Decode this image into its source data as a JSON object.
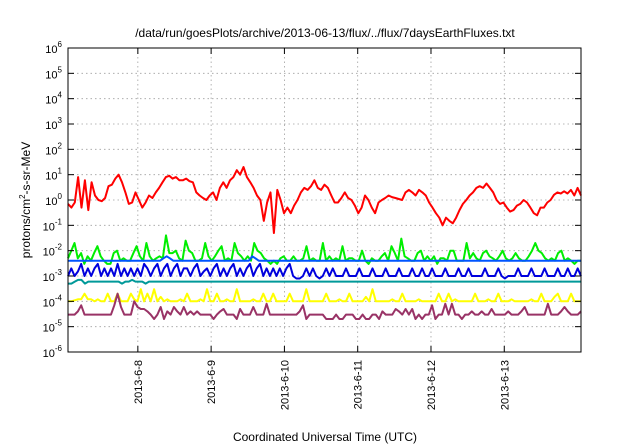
{
  "chart_data": {
    "type": "line",
    "title": "/data/run/goesPlots/archive/2013-06-13/flux/../flux/7daysEarthFluxes.txt",
    "xlabel": "Coordinated Universal Time (UTC)",
    "ylabel": "protons/cm²-s-sr-MeV",
    "ylabel_parts": {
      "main": "protons/cm",
      "sup": "2",
      "rest": "-s-sr-MeV"
    },
    "yscale": "log",
    "ylim": [
      1e-06,
      1000000.0
    ],
    "ytick_base": "10",
    "ytick_exponents": [
      "-6",
      "-5",
      "-4",
      "-3",
      "-2",
      "-1",
      "0",
      "1",
      "2",
      "3",
      "4",
      "5",
      "6"
    ],
    "xlim_days": [
      0,
      7
    ],
    "xticks": [
      "2013-6-8",
      "2013-6-9",
      "2013-6-10",
      "2013-6-11",
      "2013-6-12",
      "2013-6-13"
    ],
    "grid": true,
    "series": [
      {
        "color": "#ff0000",
        "values": [
          0.7,
          0.5,
          0.8,
          8,
          0.5,
          6,
          0.4,
          5,
          1.5,
          1,
          0.9,
          1.2,
          3.5,
          4,
          7,
          10,
          5,
          2,
          0.7,
          0.8,
          2,
          1,
          0.5,
          0.8,
          1.5,
          1.2,
          2,
          3,
          5,
          8,
          9,
          7,
          8,
          6,
          6,
          7,
          5.5,
          5,
          2,
          1.5,
          1.2,
          1,
          1.5,
          2,
          1,
          3,
          5,
          3,
          6,
          8,
          15,
          10,
          20,
          8,
          5,
          3,
          1.5,
          1,
          0.15,
          0.8,
          2,
          0.05,
          2.5,
          1,
          0.3,
          0.5,
          0.3,
          0.6,
          1,
          2,
          3,
          2.5,
          3.5,
          6,
          3,
          2.5,
          4,
          3,
          1.5,
          0.8,
          0.8,
          1.2,
          2,
          1.2,
          1,
          0.6,
          0.3,
          0.5,
          1.5,
          1,
          0.5,
          0.3,
          0.8,
          1,
          1.2,
          1.5,
          1.3,
          1.2,
          1.1,
          1,
          2,
          2.5,
          2,
          1.5,
          2.5,
          2,
          1.5,
          0.8,
          0.5,
          0.3,
          0.2,
          0.1,
          0.2,
          0.15,
          0.12,
          0.2,
          0.4,
          0.7,
          1,
          1.5,
          2,
          3,
          3.5,
          3,
          4.5,
          3,
          2,
          1,
          0.7,
          0.8,
          0.5,
          0.35,
          0.4,
          0.6,
          0.7,
          1,
          0.8,
          0.5,
          0.3,
          0.25,
          0.5,
          0.5,
          0.8,
          1,
          1.6,
          2,
          1.8,
          2.2,
          1.8,
          2.5,
          1.5,
          3,
          1.5
        ]
      },
      {
        "color": "#00ee00",
        "values": [
          0.005,
          0.01,
          0.02,
          0.005,
          0.008,
          0.003,
          0.006,
          0.004,
          0.008,
          0.015,
          0.006,
          0.004,
          0.003,
          0.003,
          0.008,
          0.01,
          0.004,
          0.005,
          0.004,
          0.004,
          0.008,
          0.015,
          0.006,
          0.004,
          0.02,
          0.006,
          0.004,
          0.005,
          0.006,
          0.005,
          0.04,
          0.008,
          0.008,
          0.01,
          0.005,
          0.004,
          0.025,
          0.01,
          0.008,
          0.004,
          0.004,
          0.005,
          0.02,
          0.006,
          0.004,
          0.006,
          0.01,
          0.015,
          0.004,
          0.005,
          0.004,
          0.02,
          0.008,
          0.006,
          0.004,
          0.006,
          0.004,
          0.02,
          0.01,
          0.008,
          0.005,
          0.004,
          0.003,
          0.004,
          0.003,
          0.005,
          0.006,
          0.004,
          0.004,
          0.006,
          0.004,
          0.004,
          0.005,
          0.015,
          0.004,
          0.005,
          0.004,
          0.004,
          0.02,
          0.004,
          0.006,
          0.004,
          0.005,
          0.004,
          0.015,
          0.004,
          0.005,
          0.005,
          0.004,
          0.004,
          0.01,
          0.004,
          0.003,
          0.005,
          0.004,
          0.004,
          0.006,
          0.008,
          0.004,
          0.015,
          0.008,
          0.004,
          0.03,
          0.006,
          0.005,
          0.004,
          0.004,
          0.008,
          0.01,
          0.004,
          0.006,
          0.004,
          0.006,
          0.003,
          0.005,
          0.005,
          0.004,
          0.01,
          0.01,
          0.004,
          0.004,
          0.004,
          0.02,
          0.005,
          0.008,
          0.005,
          0.004,
          0.008,
          0.01,
          0.006,
          0.005,
          0.004,
          0.006,
          0.01,
          0.005,
          0.004,
          0.005,
          0.008,
          0.005,
          0.004,
          0.004,
          0.006,
          0.01,
          0.02,
          0.01,
          0.008,
          0.005,
          0.004,
          0.005,
          0.004,
          0.008,
          0.01,
          0.004,
          0.005,
          0.004,
          0.003,
          0.004,
          0.004
        ]
      },
      {
        "color": "#ffff00",
        "values": [
          0.0001,
          0.0001,
          0.00011,
          0.00012,
          0.00012,
          0.0002,
          0.00012,
          0.00012,
          0.0001,
          0.00012,
          0.0001,
          0.0001,
          0.0002,
          0.0001,
          0.0001,
          0.0002,
          0.0001,
          0.0001,
          0.0001,
          0.0002,
          0.00012,
          0.0001,
          0.0003,
          0.0001,
          0.0002,
          0.0001,
          0.0003,
          0.0001,
          0.00015,
          0.0001,
          0.00012,
          0.0001,
          0.0001,
          0.0001,
          0.00012,
          0.0001,
          0.0002,
          0.0001,
          0.0001,
          0.0001,
          0.00012,
          0.0001,
          0.0003,
          0.0001,
          0.0001,
          0.0002,
          0.0001,
          0.0001,
          0.00012,
          0.0001,
          0.0001,
          0.0003,
          0.0001,
          0.0001,
          0.0001,
          0.0001,
          0.00012,
          0.0001,
          0.0001,
          0.0002,
          0.0001,
          0.0001,
          0.0002,
          0.0001,
          0.0001,
          0.0001,
          0.0001,
          0.0002,
          0.0001,
          0.0001,
          0.0001,
          0.0001,
          0.0003,
          0.0001,
          0.0001,
          0.0001,
          0.0001,
          0.0001,
          0.0002,
          0.0001,
          0.0001,
          0.0001,
          0.00012,
          0.0001,
          0.0001,
          0.0002,
          0.0001,
          0.0001,
          0.0001,
          0.0001,
          0.00015,
          0.0001,
          0.0003,
          0.0001,
          0.0001,
          0.0001,
          0.0001,
          0.0001,
          0.00012,
          0.0001,
          0.0001,
          0.0002,
          0.0001,
          0.0001,
          0.0001,
          0.0001,
          0.00012,
          0.0001,
          0.0001,
          0.0001,
          0.0001,
          0.0001,
          0.0002,
          0.0001,
          0.0001,
          0.0002,
          0.0001,
          0.00012,
          0.0001,
          0.0001,
          0.0001,
          0.0001,
          0.0001,
          0.0002,
          0.0001,
          0.0001,
          0.0001,
          0.00012,
          0.0001,
          0.0001,
          0.0002,
          0.0001,
          0.0001,
          0.0001,
          0.00012,
          0.0001,
          0.0001,
          0.0001,
          0.0001,
          0.0001,
          0.00012,
          0.0001,
          0.0001,
          0.0002,
          0.0001,
          0.0001,
          0.0001,
          0.00015,
          0.0002,
          0.0001,
          0.0001,
          0.0001,
          0.0002,
          0.0001,
          0.0001,
          0.0001
        ]
      },
      {
        "color": "#993366",
        "values": [
          3e-05,
          3e-05,
          3e-05,
          4e-05,
          7e-05,
          3e-05,
          3e-05,
          3e-05,
          3e-05,
          3e-05,
          3e-05,
          3e-05,
          3e-05,
          3e-05,
          7e-05,
          0.0002,
          6e-05,
          3e-05,
          3e-05,
          3e-05,
          0.0001,
          6e-05,
          5e-05,
          5e-05,
          4e-05,
          3e-05,
          2e-05,
          3e-05,
          6e-05,
          2e-05,
          4e-05,
          3e-05,
          6e-05,
          4e-05,
          3e-05,
          6e-05,
          3e-05,
          4e-05,
          3e-05,
          4e-05,
          3e-05,
          3e-05,
          3e-05,
          3e-05,
          2e-05,
          3e-05,
          4e-05,
          5e-05,
          3e-05,
          3e-05,
          3e-05,
          2e-05,
          5e-05,
          3e-05,
          3e-05,
          3e-05,
          6e-05,
          3e-05,
          3e-05,
          3e-05,
          8e-05,
          3e-05,
          3e-05,
          3e-05,
          3e-05,
          3e-05,
          3e-05,
          3e-05,
          3e-05,
          3e-05,
          4e-05,
          7e-05,
          2e-05,
          3e-05,
          3e-05,
          3e-05,
          3e-05,
          3e-05,
          2e-05,
          2e-05,
          2e-05,
          3e-05,
          2e-05,
          2e-05,
          3e-05,
          3e-05,
          3e-05,
          2e-05,
          2e-05,
          3e-05,
          2e-05,
          2e-05,
          3e-05,
          3e-05,
          2e-05,
          4e-05,
          3e-05,
          3e-05,
          3e-05,
          5e-05,
          4e-05,
          3e-05,
          5e-05,
          3e-05,
          5e-05,
          2e-05,
          3e-05,
          2e-05,
          3e-05,
          3e-05,
          7e-05,
          2e-05,
          3e-05,
          3e-05,
          8e-05,
          3e-05,
          8e-05,
          3e-05,
          3e-05,
          2e-05,
          3e-05,
          3e-05,
          4e-05,
          3e-05,
          3e-05,
          4e-05,
          3e-05,
          3e-05,
          5e-05,
          3e-05,
          3e-05,
          3e-05,
          3e-05,
          4e-05,
          3e-05,
          3e-05,
          3e-05,
          4e-05,
          6e-05,
          3e-05,
          3e-05,
          3e-05,
          3e-05,
          3e-05,
          3e-05,
          8e-05,
          3e-05,
          3e-05,
          3e-05,
          4e-05,
          6e-05,
          4e-05,
          3e-05,
          3e-05,
          3e-05,
          4e-05
        ]
      },
      {
        "color": "#009999",
        "values": [
          0.0005,
          0.0005,
          0.0006,
          0.0007,
          0.0007,
          0.0005,
          0.0006,
          0.0006,
          0.0006,
          0.0006,
          0.0006,
          0.0006,
          0.0006,
          0.0006,
          0.0006,
          0.0006,
          0.0005,
          0.0006,
          0.0006,
          0.0007,
          0.0006,
          0.0006,
          0.0006,
          0.0005,
          0.0006,
          0.0006,
          0.0006,
          0.0006,
          0.0006,
          0.0006,
          0.0006,
          0.0006,
          0.0006,
          0.0006,
          0.0006,
          0.0006,
          0.0006,
          0.0006,
          0.0006,
          0.0006,
          0.0006,
          0.0006,
          0.0006,
          0.0006,
          0.0006,
          0.0006,
          0.0006,
          0.0006,
          0.0006,
          0.0006,
          0.0006,
          0.0006,
          0.0006,
          0.0006,
          0.0006,
          0.0006,
          0.0006,
          0.0006,
          0.0006,
          0.0006,
          0.0006,
          0.0006,
          0.0006,
          0.0006,
          0.0006,
          0.0006,
          0.0006,
          0.0006,
          0.0006,
          0.0006,
          0.0006,
          0.0006,
          0.0006,
          0.0006,
          0.0006,
          0.0006,
          0.0006,
          0.0006,
          0.0006,
          0.0006,
          0.0006,
          0.0006,
          0.0006,
          0.0006,
          0.0006,
          0.0006,
          0.0006,
          0.0006,
          0.0006,
          0.0006,
          0.0006,
          0.0006,
          0.0006,
          0.0006,
          0.0006,
          0.0006,
          0.0006,
          0.0006,
          0.0006,
          0.0006,
          0.0006,
          0.0006,
          0.0006,
          0.0006,
          0.0006,
          0.0006,
          0.0006,
          0.0006,
          0.0006,
          0.0006,
          0.0006,
          0.0006,
          0.0006,
          0.0006,
          0.0006,
          0.0006,
          0.0006,
          0.0006,
          0.0006,
          0.0006,
          0.0006,
          0.0006,
          0.0006,
          0.0006,
          0.0006,
          0.0006,
          0.0006,
          0.0006,
          0.0006,
          0.0006,
          0.0006,
          0.0006,
          0.0006,
          0.0006,
          0.0006,
          0.0006,
          0.0006,
          0.0006,
          0.0006,
          0.0006,
          0.0006,
          0.0006,
          0.0006,
          0.0006,
          0.0006,
          0.0006,
          0.0006,
          0.0006,
          0.0006,
          0.0006,
          0.0006,
          0.0006,
          0.0006
        ]
      },
      {
        "color": "#0055ff",
        "values": [
          0.004,
          0.004,
          0.004,
          0.004,
          0.004,
          0.004,
          0.004,
          0.004,
          0.004,
          0.004,
          0.004,
          0.004,
          0.004,
          0.004,
          0.004,
          0.004,
          0.004,
          0.004,
          0.004,
          0.004,
          0.004,
          0.004,
          0.004,
          0.004,
          0.004,
          0.004,
          0.004,
          0.004,
          0.004,
          0.005,
          0.006,
          0.005,
          0.004,
          0.004,
          0.004,
          0.004,
          0.004,
          0.004,
          0.004,
          0.004,
          0.004,
          0.004,
          0.004,
          0.004,
          0.004,
          0.004,
          0.004,
          0.004,
          0.004,
          0.004,
          0.004,
          0.004,
          0.004,
          0.004,
          0.004,
          0.004,
          0.006,
          0.005,
          0.004,
          0.004,
          0.004,
          0.004,
          0.004,
          0.004,
          0.004,
          0.004,
          0.004,
          0.004,
          0.004,
          0.004,
          0.004,
          0.004,
          0.004,
          0.004,
          0.004,
          0.004,
          0.004,
          0.004,
          0.004,
          0.004,
          0.004,
          0.004,
          0.004,
          0.004,
          0.004,
          0.004,
          0.004,
          0.004,
          0.004,
          0.004,
          0.004,
          0.004,
          0.004,
          0.004,
          0.004,
          0.004,
          0.004,
          0.004,
          0.004,
          0.004,
          0.004,
          0.004,
          0.004,
          0.004,
          0.004,
          0.004,
          0.004,
          0.004,
          0.004,
          0.004,
          0.004,
          0.004,
          0.004,
          0.004,
          0.004,
          0.004,
          0.004,
          0.004,
          0.004,
          0.004,
          0.004,
          0.004,
          0.004,
          0.004,
          0.004,
          0.004,
          0.004,
          0.004,
          0.004,
          0.004,
          0.004,
          0.004,
          0.004,
          0.004,
          0.004,
          0.004,
          0.004,
          0.004,
          0.004,
          0.004,
          0.004,
          0.004,
          0.004,
          0.004,
          0.004,
          0.004,
          0.004,
          0.004,
          0.004,
          0.004,
          0.004,
          0.004,
          0.004,
          0.004,
          0.004,
          0.004,
          0.004
        ]
      },
      {
        "color": "#0000dd",
        "values": [
          0.001,
          0.002,
          0.001,
          0.0015,
          0.003,
          0.001,
          0.002,
          0.001,
          0.002,
          0.003,
          0.001,
          0.002,
          0.001,
          0.002,
          0.001,
          0.003,
          0.001,
          0.002,
          0.001,
          0.002,
          0.001,
          0.002,
          0.001,
          0.003,
          0.002,
          0.001,
          0.002,
          0.003,
          0.001,
          0.002,
          0.003,
          0.001,
          0.002,
          0.003,
          0.001,
          0.002,
          0.002,
          0.001,
          0.002,
          0.003,
          0.001,
          0.0015,
          0.002,
          0.001,
          0.002,
          0.003,
          0.001,
          0.002,
          0.001,
          0.002,
          0.003,
          0.001,
          0.002,
          0.001,
          0.002,
          0.003,
          0.001,
          0.002,
          0.003,
          0.001,
          0.002,
          0.001,
          0.002,
          0.001,
          0.002,
          0.001,
          0.002,
          0.003,
          0.001,
          0.0008,
          0.0008,
          0.001,
          0.002,
          0.001,
          0.002,
          0.001,
          0.0008,
          0.001,
          0.002,
          0.001,
          0.002,
          0.001,
          0.001,
          0.001,
          0.002,
          0.001,
          0.001,
          0.001,
          0.002,
          0.001,
          0.001,
          0.001,
          0.002,
          0.001,
          0.001,
          0.001,
          0.002,
          0.001,
          0.001,
          0.001,
          0.002,
          0.001,
          0.001,
          0.001,
          0.002,
          0.001,
          0.001,
          0.002,
          0.001,
          0.001,
          0.002,
          0.001,
          0.001,
          0.001,
          0.002,
          0.001,
          0.001,
          0.001,
          0.002,
          0.001,
          0.001,
          0.002,
          0.001,
          0.001,
          0.001,
          0.001,
          0.002,
          0.001,
          0.001,
          0.001,
          0.002,
          0.001,
          0.0008,
          0.001,
          0.001,
          0.001,
          0.002,
          0.001,
          0.001,
          0.001,
          0.002,
          0.001,
          0.001,
          0.001,
          0.002,
          0.001,
          0.001,
          0.001,
          0.002,
          0.001,
          0.001,
          0.002,
          0.001,
          0.001,
          0.002,
          0.001
        ]
      }
    ]
  }
}
